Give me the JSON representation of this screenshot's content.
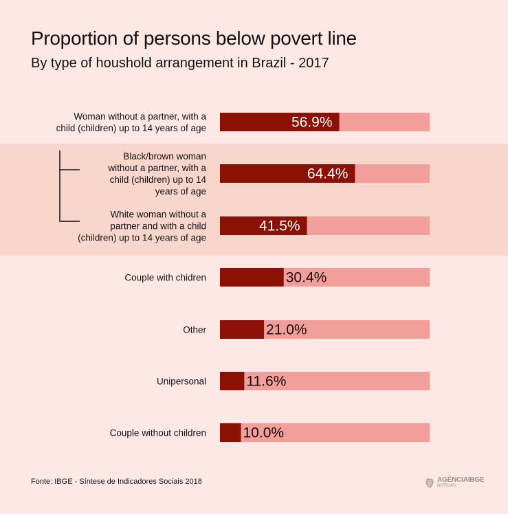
{
  "title": "Proportion of persons below povert line",
  "subtitle": "By type of houshold arrangement in Brazil - 2017",
  "source": "Fonte: IBGE - Síntese de Indicadores Sociais 2018",
  "logo": {
    "main": "AGÊNCIAIBGE",
    "sub": "NOTÍCIAS"
  },
  "colors": {
    "background": "#fde8e6",
    "highlight_band": "#f8d6cc",
    "bar_fill": "#8b1104",
    "bar_track": "#f29e9b",
    "label_on_bar": "#ffffff",
    "label_off_bar": "#1a0a0a"
  },
  "chart_data": {
    "type": "bar",
    "orientation": "horizontal",
    "title": "Proportion of persons below povert line",
    "subtitle": "By type of houshold arrangement in Brazil - 2017",
    "xlim": [
      0,
      100
    ],
    "unit": "%",
    "categories": [
      [
        "Woman without a partner, with a",
        "child (children) up to 14  years of age"
      ],
      [
        "Black/brown woman",
        "without a partner, with a",
        "child (children) up to 14",
        "years of age"
      ],
      [
        "White woman without a",
        "partner and with a child",
        "(children) up to 14 years of age"
      ],
      [
        "Couple with chidren"
      ],
      [
        "Other"
      ],
      [
        "Unipersonal"
      ],
      [
        "Couple without children"
      ]
    ],
    "values": [
      56.9,
      64.4,
      41.5,
      30.4,
      21.0,
      11.6,
      10.0
    ],
    "value_labels": [
      "56.9%",
      "64.4%",
      "41.5%",
      "30.4%",
      "21.0%",
      "11.6%",
      "10.0%"
    ]
  }
}
